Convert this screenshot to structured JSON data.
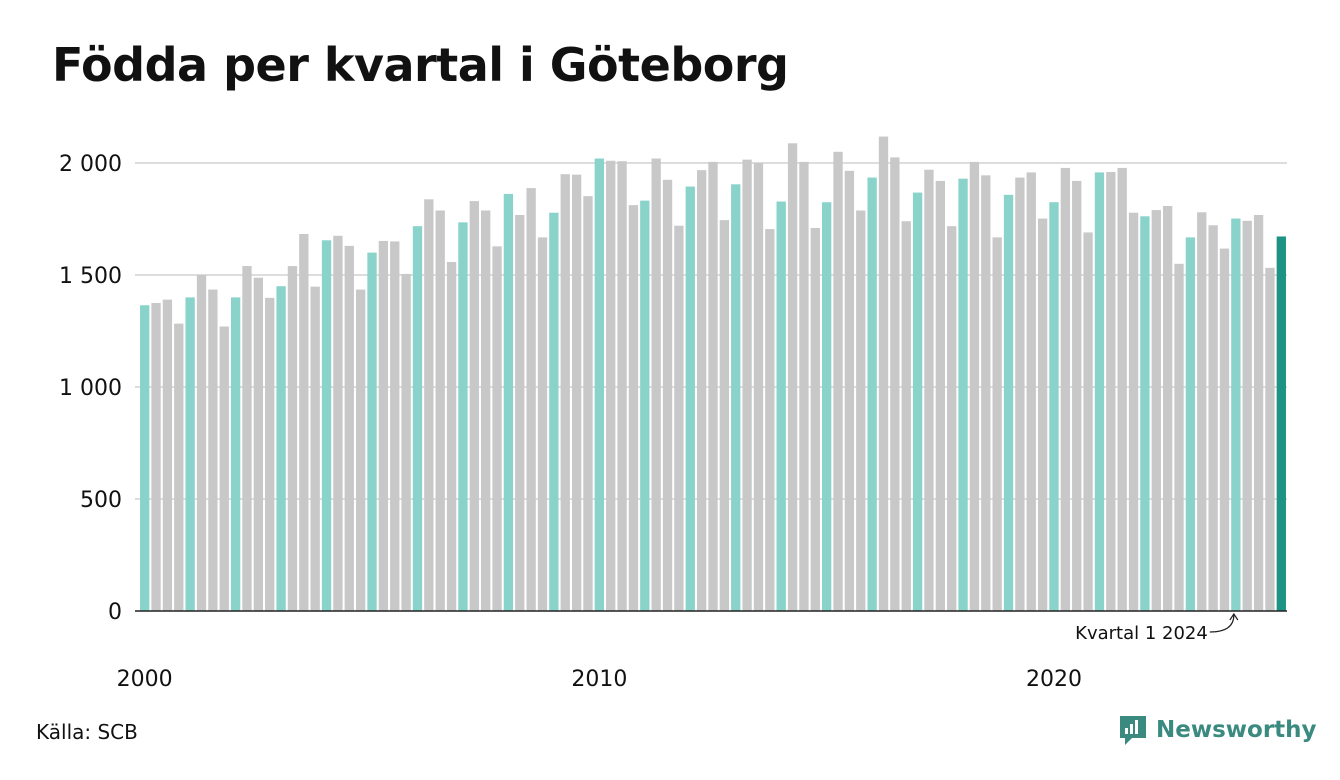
{
  "header": {
    "title": "Födda per kvartal i Göteborg"
  },
  "footer": {
    "source": "Källa: SCB",
    "brand": "Newsworthy"
  },
  "colors": {
    "q1": "#8ad3cb",
    "other": "#c8c8c8",
    "latest": "#1d9483",
    "grid": "#dddddd",
    "axis": "#222222"
  },
  "chart_data": {
    "type": "bar",
    "title": "Födda per kvartal i Göteborg",
    "xlabel": "",
    "ylabel": "",
    "ylim": [
      0,
      2100
    ],
    "yticks": [
      0,
      500,
      1000,
      1500,
      2000
    ],
    "ytick_labels": [
      "0",
      "500",
      "1 000",
      "1 500",
      "2 000"
    ],
    "xtick_labels": [
      {
        "year": 2000,
        "label": "2000"
      },
      {
        "year": 2010,
        "label": "2010"
      },
      {
        "year": 2020,
        "label": "2020"
      }
    ],
    "grid": true,
    "start_year": 2000,
    "annotation": {
      "text": "Kvartal 1 2024",
      "target_year": 2024,
      "target_quarter": 1
    },
    "values": [
      1365,
      1375,
      1390,
      1283,
      1400,
      1500,
      1435,
      1270,
      1400,
      1540,
      1488,
      1398,
      1450,
      1540,
      1683,
      1448,
      1655,
      1675,
      1630,
      1435,
      1600,
      1652,
      1650,
      1505,
      1718,
      1838,
      1788,
      1558,
      1735,
      1830,
      1788,
      1628,
      1862,
      1768,
      1888,
      1668,
      1778,
      1950,
      1948,
      1852,
      2020,
      2010,
      2008,
      1812,
      1832,
      2020,
      1925,
      1720,
      1895,
      1968,
      2005,
      1745,
      1905,
      2015,
      2000,
      1705,
      1828,
      2088,
      2005,
      1710,
      1825,
      2050,
      1965,
      1788,
      1935,
      2118,
      2025,
      1740,
      1868,
      1970,
      1920,
      1718,
      1930,
      2005,
      1945,
      1668,
      1858,
      1935,
      1958,
      1752,
      1825,
      1978,
      1920,
      1690,
      1958,
      1960,
      1978,
      1778,
      1762,
      1790,
      1808,
      1550,
      1668,
      1780,
      1722,
      1618,
      1752,
      1742,
      1768,
      1532,
      1672
    ]
  }
}
